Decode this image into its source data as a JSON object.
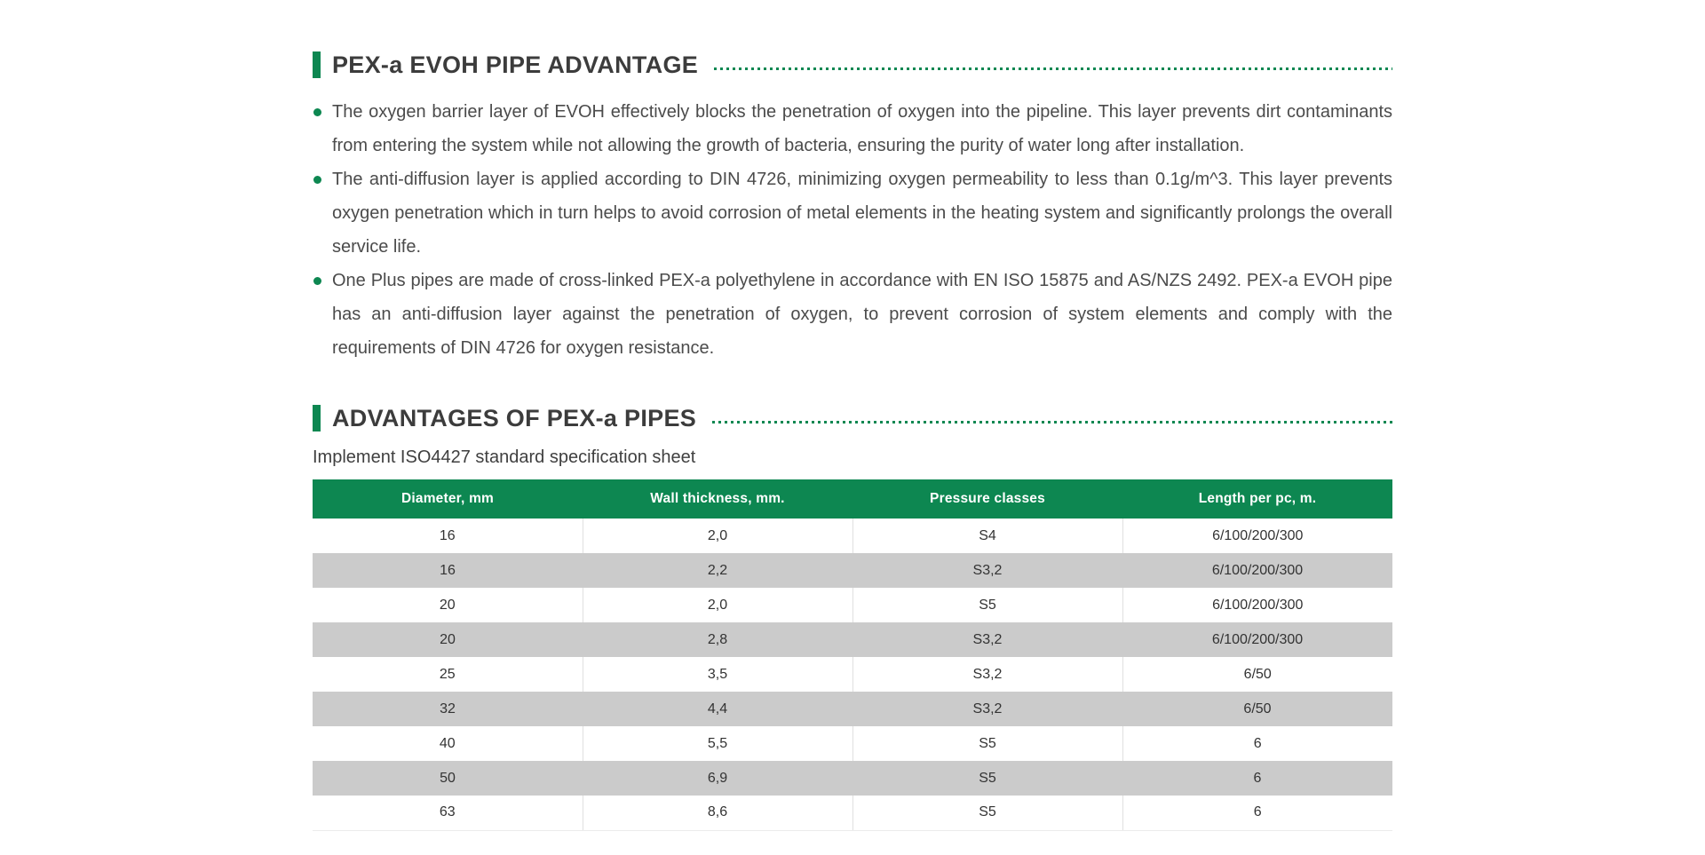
{
  "colors": {
    "accent_green": "#0d8751",
    "row_gray": "#cbcbcb",
    "heading_text": "#3c3c3c",
    "body_text": "#4b4b4b"
  },
  "section1": {
    "title": "PEX-a EVOH PIPE ADVANTAGE",
    "bullets": [
      "The oxygen barrier layer of EVOH effectively blocks the penetration of oxygen into the pipeline. This layer prevents dirt contaminants from entering the system while not allowing the growth of bacteria, ensuring the purity of water long after installation.",
      "The anti-diffusion layer is applied according to DIN 4726, minimizing oxygen permeability to less than 0.1g/m^3. This layer prevents oxygen penetration which in turn helps to avoid corrosion of metal elements in the heating system and significantly prolongs the overall service life.",
      "One Plus pipes are made of cross-linked PEX-a polyethylene in accordance with EN ISO 15875 and AS/NZS 2492. PEX-a EVOH pipe has an anti-diffusion layer against the penetration of oxygen, to prevent corrosion of system elements and comply with the requirements of DIN 4726 for oxygen resistance."
    ]
  },
  "section2": {
    "title": "ADVANTAGES OF PEX-a PIPES",
    "subtitle": "Implement ISO4427 standard specification sheet",
    "table": {
      "headers": [
        "Diameter, mm",
        "Wall thickness, mm.",
        "Pressure classes",
        "Length per pc, m."
      ],
      "rows": [
        [
          "16",
          "2,0",
          "S4",
          "6/100/200/300"
        ],
        [
          "16",
          "2,2",
          "S3,2",
          "6/100/200/300"
        ],
        [
          "20",
          "2,0",
          "S5",
          "6/100/200/300"
        ],
        [
          "20",
          "2,8",
          "S3,2",
          "6/100/200/300"
        ],
        [
          "25",
          "3,5",
          "S3,2",
          "6/50"
        ],
        [
          "32",
          "4,4",
          "S3,2",
          "6/50"
        ],
        [
          "40",
          "5,5",
          "S5",
          "6"
        ],
        [
          "50",
          "6,9",
          "S5",
          "6"
        ],
        [
          "63",
          "8,6",
          "S5",
          "6"
        ]
      ]
    }
  }
}
